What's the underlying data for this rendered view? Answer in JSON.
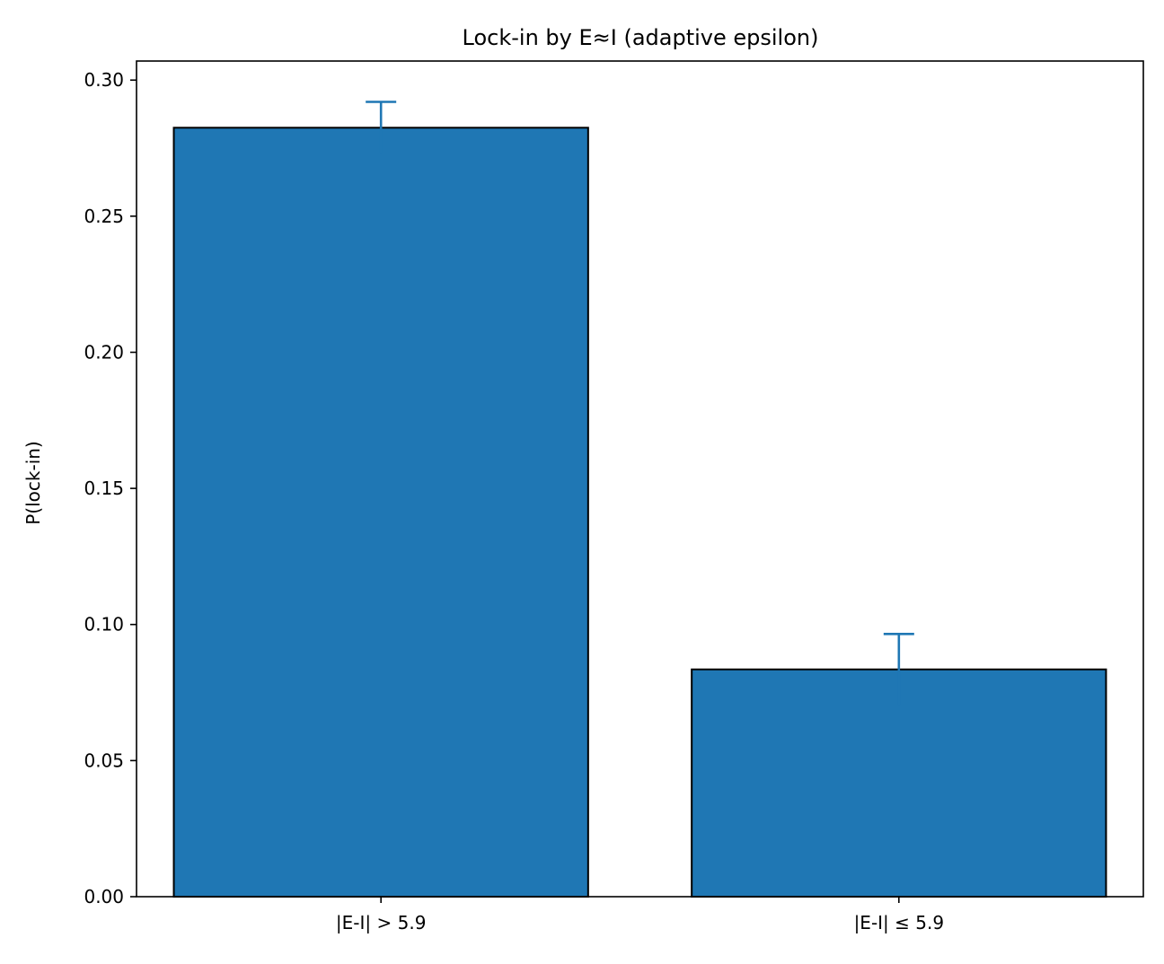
{
  "chart_data": {
    "type": "bar",
    "title": "Lock-in by E≈I (adaptive epsilon)",
    "xlabel": "",
    "ylabel": "P(lock-in)",
    "categories": [
      "|E-I| > 5.9",
      "|E-I| ≤ 5.9"
    ],
    "values": [
      0.2825,
      0.0835
    ],
    "errors": [
      0.0095,
      0.013
    ],
    "ylim": [
      0,
      0.307
    ],
    "yticks": [
      0.0,
      0.05,
      0.1,
      0.15,
      0.2,
      0.25,
      0.3
    ],
    "ytick_labels": [
      "0.00",
      "0.05",
      "0.10",
      "0.15",
      "0.20",
      "0.25",
      "0.30"
    ],
    "grid": false,
    "bar_color": "#1f77b4",
    "edge_color": "#000000",
    "error_color": "#1f77b4"
  }
}
